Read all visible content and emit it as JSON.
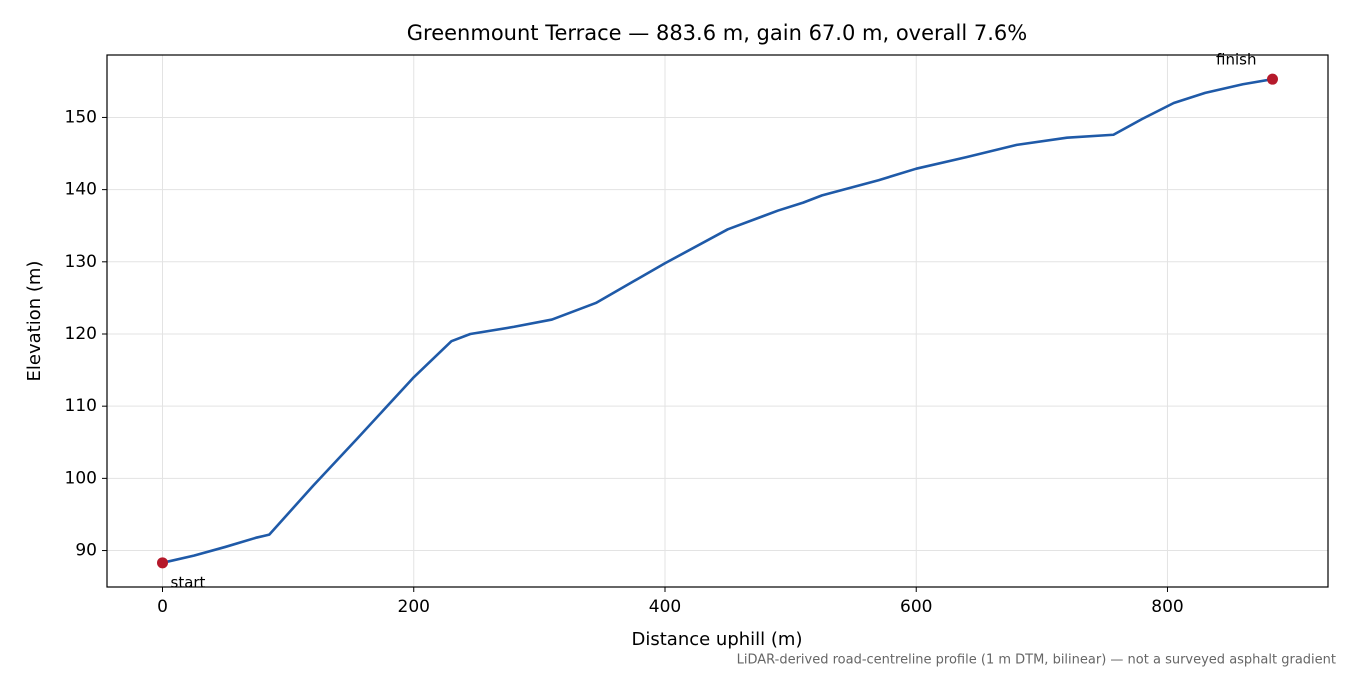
{
  "chart_data": {
    "type": "line",
    "title": "Greenmount Terrace — 883.6 m, gain 67.0 m, overall 7.6%",
    "x_label": "Distance uphill (m)",
    "y_label": "Elevation (m)",
    "footnote": "LiDAR-derived road-centreline profile (1 m DTM, bilinear) — not a surveyed asphalt gradient",
    "x": [
      0,
      25,
      50,
      75,
      80,
      85,
      120,
      155,
      200,
      230,
      245,
      280,
      310,
      345,
      400,
      450,
      490,
      510,
      525,
      570,
      600,
      640,
      680,
      720,
      757,
      780,
      805,
      830,
      860,
      883.6
    ],
    "series": [
      {
        "color": "#1f5aa8",
        "values": [
          88.3,
          89.3,
          90.5,
          91.8,
          92.0,
          92.2,
          99.0,
          105.5,
          114.0,
          119.0,
          120.0,
          121.0,
          122.0,
          124.3,
          129.8,
          134.5,
          137.1,
          138.2,
          139.2,
          141.3,
          142.9,
          144.5,
          146.2,
          147.2,
          147.6,
          149.8,
          152.0,
          153.4,
          154.6,
          155.3
        ]
      }
    ],
    "markers": [
      {
        "label": "start",
        "x": 0,
        "y": 88.3
      },
      {
        "label": "finish",
        "x": 883.6,
        "y": 155.3
      }
    ],
    "marker_color": "#b5192b",
    "xlim": [
      -44.18,
      927.78
    ],
    "ylim": [
      84.95,
      158.65
    ],
    "xticks": [
      0,
      200,
      400,
      600,
      800
    ],
    "yticks": [
      90,
      100,
      110,
      120,
      130,
      140,
      150
    ],
    "grid": true
  }
}
